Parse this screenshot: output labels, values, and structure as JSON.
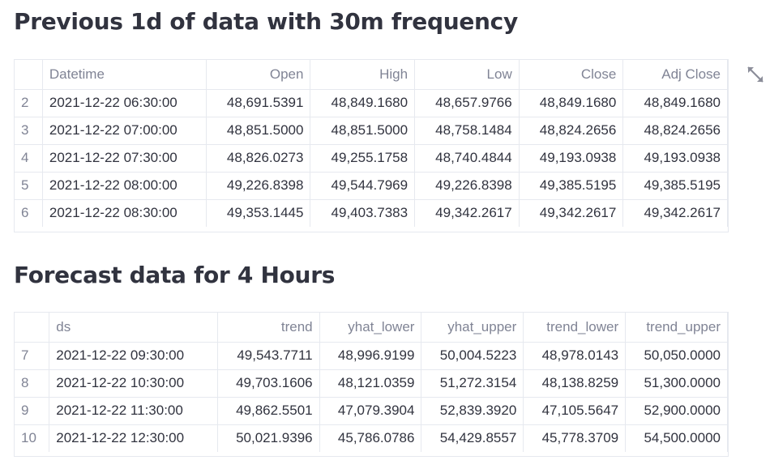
{
  "section1": {
    "title": "Previous 1d of data with 30m frequency",
    "columns": [
      "",
      "Datetime",
      "Open",
      "High",
      "Low",
      "Close",
      "Adj Close"
    ],
    "rows": [
      [
        "2",
        "2021-12-22 06:30:00",
        "48,691.5391",
        "48,849.1680",
        "48,657.9766",
        "48,849.1680",
        "48,849.1680"
      ],
      [
        "3",
        "2021-12-22 07:00:00",
        "48,851.5000",
        "48,851.5000",
        "48,758.1484",
        "48,824.2656",
        "48,824.2656"
      ],
      [
        "4",
        "2021-12-22 07:30:00",
        "48,826.0273",
        "49,255.1758",
        "48,740.4844",
        "49,193.0938",
        "49,193.0938"
      ],
      [
        "5",
        "2021-12-22 08:00:00",
        "49,226.8398",
        "49,544.7969",
        "49,226.8398",
        "49,385.5195",
        "49,385.5195"
      ],
      [
        "6",
        "2021-12-22 08:30:00",
        "49,353.1445",
        "49,403.7383",
        "49,342.2617",
        "49,342.2617",
        "49,342.2617"
      ]
    ]
  },
  "section2": {
    "title": "Forecast data for 4 Hours",
    "columns": [
      "",
      "ds",
      "trend",
      "yhat_lower",
      "yhat_upper",
      "trend_lower",
      "trend_upper"
    ],
    "rows": [
      [
        "7",
        "2021-12-22 09:30:00",
        "49,543.7711",
        "48,996.9199",
        "50,004.5223",
        "48,978.0143",
        "50,050.0000"
      ],
      [
        "8",
        "2021-12-22 10:30:00",
        "49,703.1606",
        "48,121.0359",
        "51,272.3154",
        "48,138.8259",
        "51,300.0000"
      ],
      [
        "9",
        "2021-12-22 11:30:00",
        "49,862.5501",
        "47,079.3904",
        "52,839.3920",
        "47,105.5647",
        "52,900.0000"
      ],
      [
        "10",
        "2021-12-22 12:30:00",
        "50,021.9396",
        "45,786.0786",
        "54,429.8557",
        "45,778.3709",
        "54,500.0000"
      ]
    ]
  },
  "icons": {
    "fullscreen": "fullscreen-expand-icon"
  },
  "colors": {
    "text": "#31333f",
    "muted": "#808495",
    "border": "#e6e9ef",
    "icon": "#8b8d99"
  }
}
